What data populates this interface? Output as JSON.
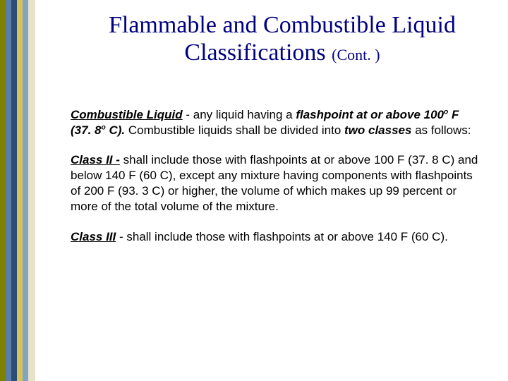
{
  "stripes": [
    {
      "x": 0,
      "w": 8,
      "color": "#808000"
    },
    {
      "x": 8,
      "w": 8,
      "color": "#5a7ea8"
    },
    {
      "x": 16,
      "w": 8,
      "color": "#2a4e78"
    },
    {
      "x": 24,
      "w": 8,
      "color": "#d9c25a"
    },
    {
      "x": 32,
      "w": 8,
      "color": "#7da6c4"
    },
    {
      "x": 40,
      "w": 10,
      "color": "#e8e2c8"
    }
  ],
  "title_line1": "Flammable and Combustible Liquid",
  "title_line2": "Classifications ",
  "title_cont": "(Cont. )",
  "title_color": "#000080",
  "title_font": "Times New Roman",
  "title_fontsize": 34,
  "cont_fontsize": 22,
  "body_fontsize": 17,
  "body_color": "#000000",
  "p1": {
    "lead_term": "Combustible Liquid",
    "dash": " - any liquid having a ",
    "flashpoint": "flashpoint at or above 100",
    "sup1": "o",
    "f_part": " F (37. 8",
    "sup2": "o",
    "c_part": " C).",
    "rest1": "  Combustible liquids shall be divided into ",
    "two_classes": "two classes",
    "rest2": " as follows:"
  },
  "p2": {
    "head": "Class II -",
    "body": " shall include those with flashpoints at or above 100  F (37. 8  C) and below 140  F (60  C), except any mixture having components with flashpoints of 200  F (93. 3  C) or higher, the volume of which makes up 99 percent or more of the total volume of the mixture."
  },
  "p3": {
    "head": "Class III",
    "dash": " - shall include those with flashpoints at or above 140  F (60  C)."
  }
}
